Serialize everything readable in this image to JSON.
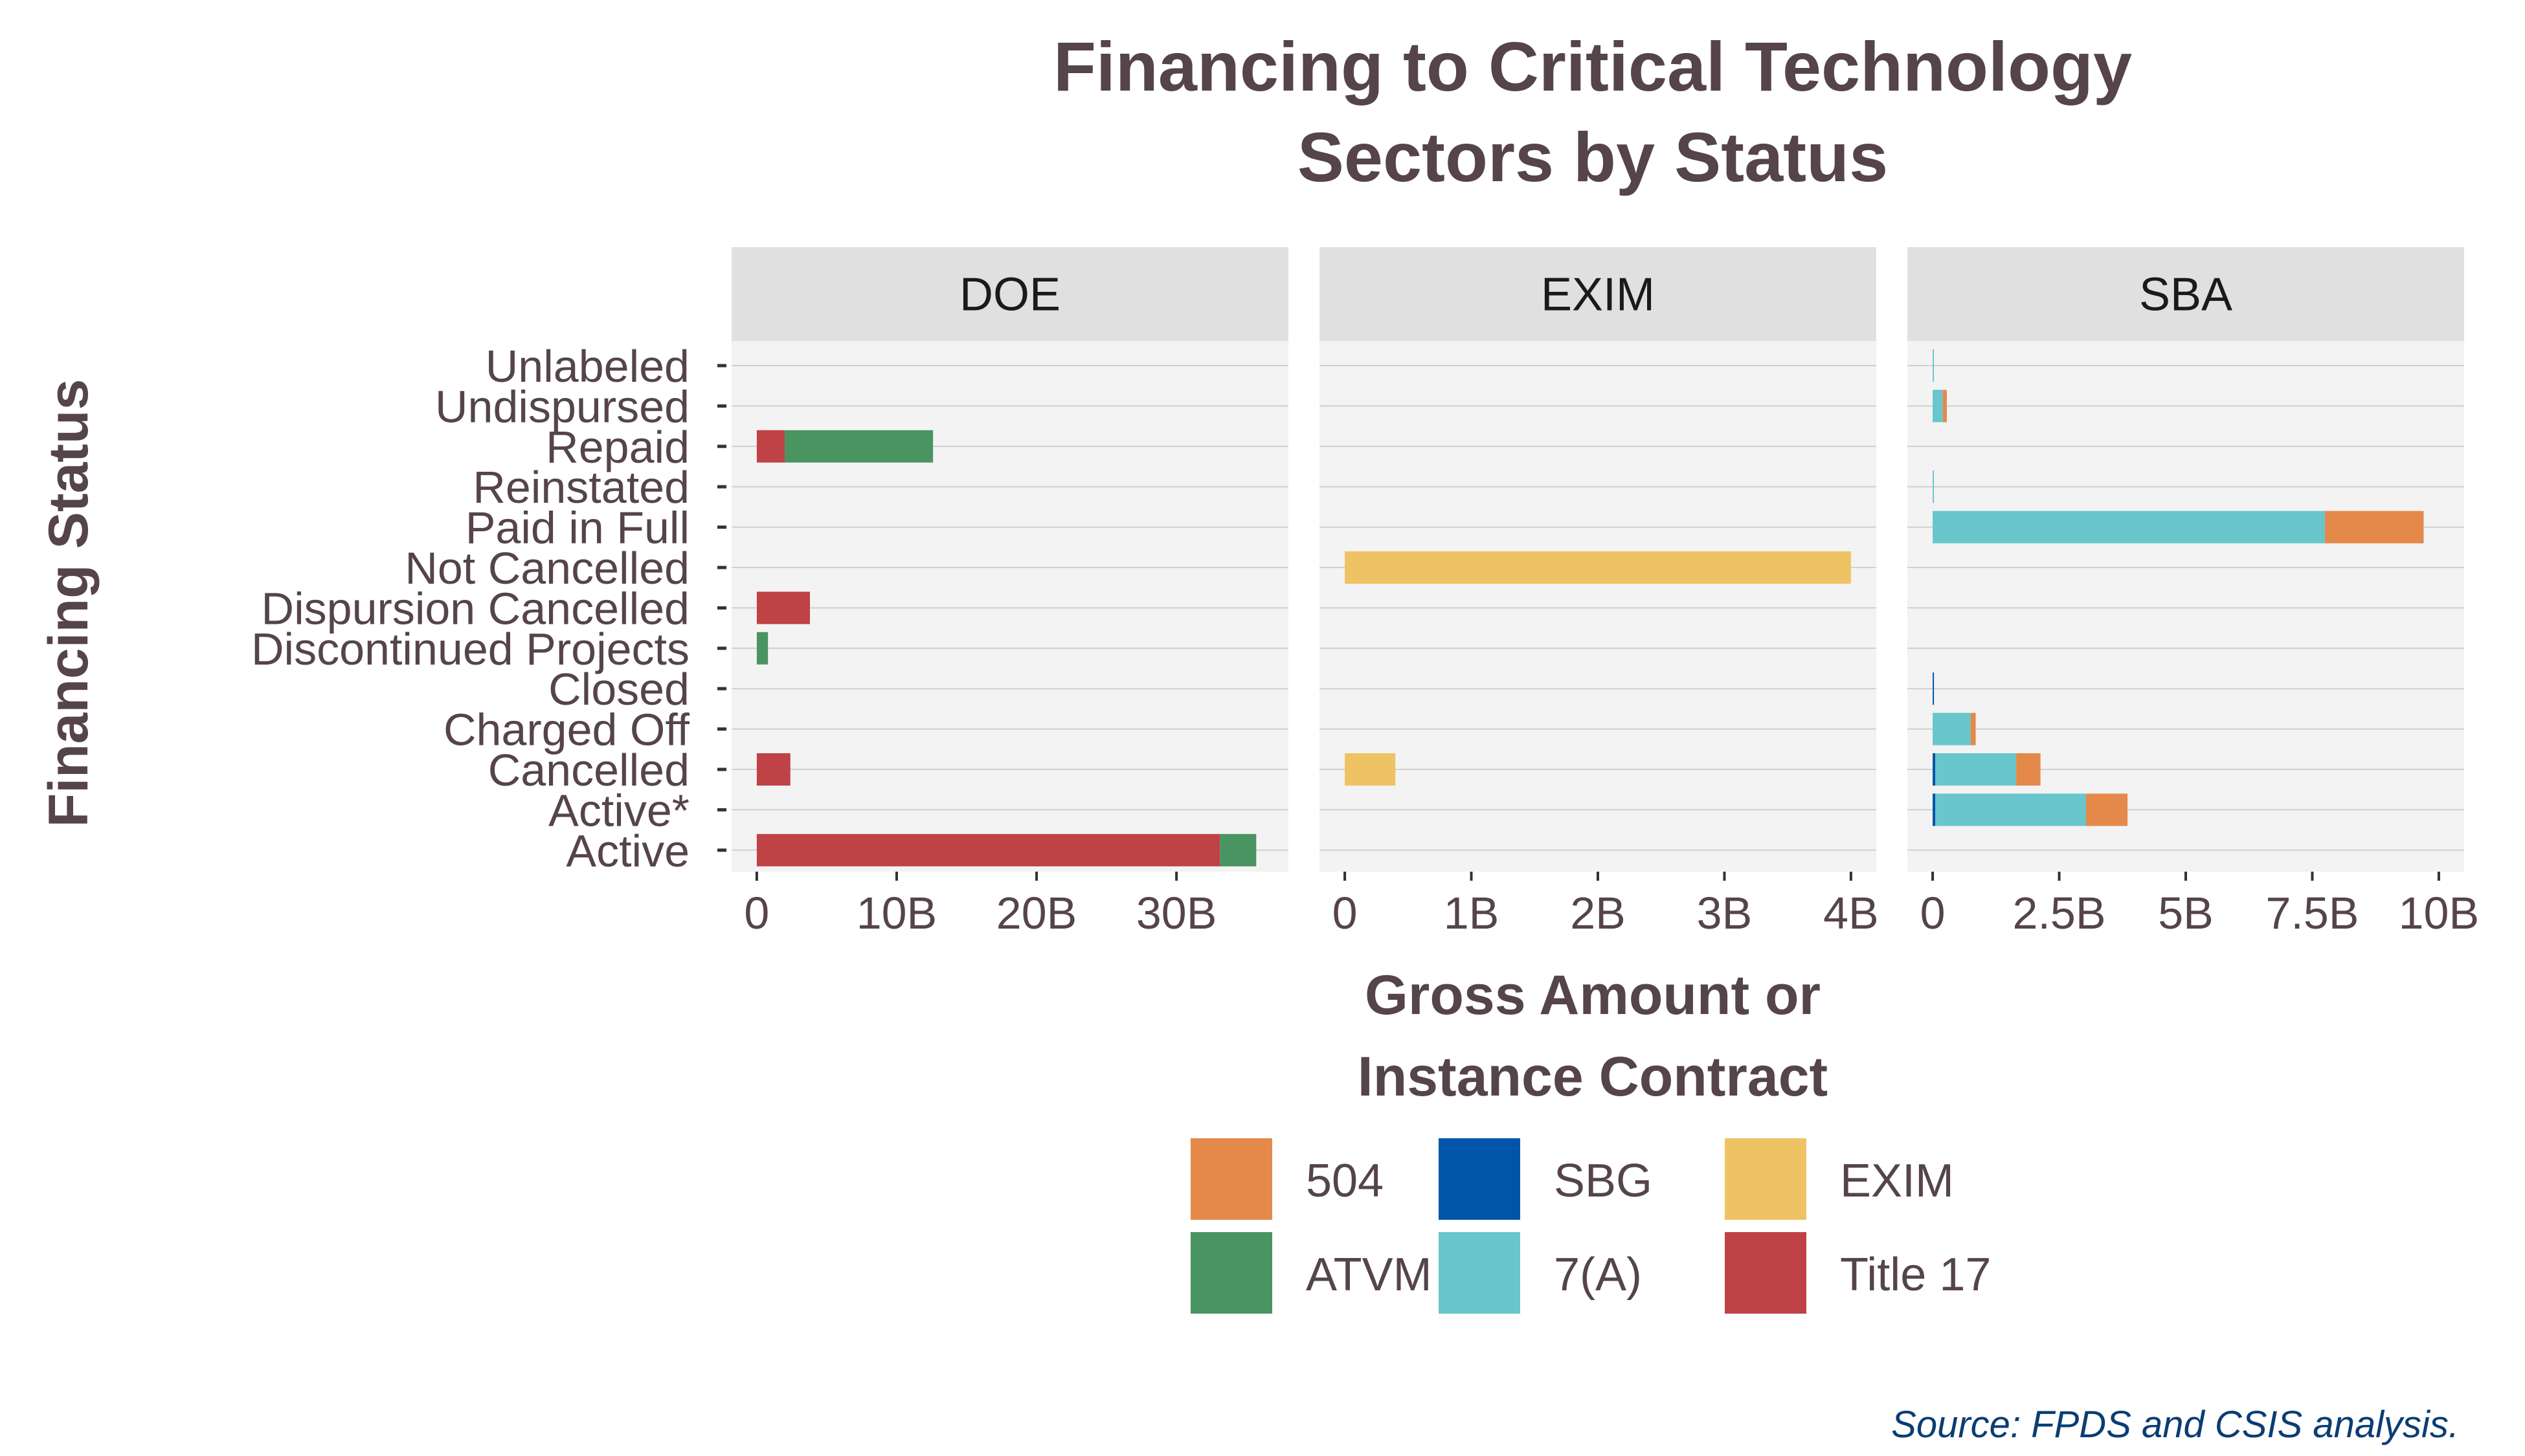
{
  "chart_data": {
    "type": "bar",
    "orientation": "horizontal",
    "stacked": true,
    "title": "Financing to Critical Technology Sectors by Status",
    "title_lines": [
      "Financing to Critical Technology",
      "Sectors by Status"
    ],
    "xlabel": "Gross Amount or Instance Contract",
    "xlabel_lines": [
      "Gross Amount or",
      "Instance Contract"
    ],
    "ylabel": "Financing Status",
    "caption": "Source: FPDS and CSIS analysis.",
    "categories": [
      "Unlabeled",
      "Undispursed",
      "Repaid",
      "Reinstated",
      "Paid in Full",
      "Not Cancelled",
      "Dispursion Cancelled",
      "Discontinued Projects",
      "Closed",
      "Charged Off",
      "Cancelled",
      "Active*",
      "Active"
    ],
    "legend": {
      "position": "bottom",
      "items": [
        {
          "name": "504",
          "color": "#E5894A"
        },
        {
          "name": "ATVM",
          "color": "#4A9461"
        },
        {
          "name": "SBG",
          "color": "#0055A8"
        },
        {
          "name": "7(A)",
          "color": "#68C6CC"
        },
        {
          "name": "EXIM",
          "color": "#EEC363"
        },
        {
          "name": "Title 17",
          "color": "#BF4246"
        }
      ]
    },
    "stack_order": [
      "SBG",
      "7(A)",
      "504",
      "Title 17",
      "ATVM",
      "EXIM"
    ],
    "facets": [
      {
        "name": "DOE",
        "xlim": [
          -1.8,
          38
        ],
        "ticks": [
          0,
          10,
          20,
          30
        ],
        "tick_labels": [
          "0",
          "10B",
          "20B",
          "30B"
        ],
        "bars": [
          {
            "category": "Repaid",
            "segments": [
              {
                "series": "Title 17",
                "value": 2.0
              },
              {
                "series": "ATVM",
                "value": 10.6
              }
            ]
          },
          {
            "category": "Dispursion Cancelled",
            "segments": [
              {
                "series": "Title 17",
                "value": 3.8
              }
            ]
          },
          {
            "category": "Discontinued Projects",
            "segments": [
              {
                "series": "ATVM",
                "value": 0.8
              }
            ]
          },
          {
            "category": "Cancelled",
            "segments": [
              {
                "series": "Title 17",
                "value": 2.4
              }
            ]
          },
          {
            "category": "Active",
            "segments": [
              {
                "series": "Title 17",
                "value": 33.1
              },
              {
                "series": "ATVM",
                "value": 2.6
              }
            ]
          }
        ]
      },
      {
        "name": "EXIM",
        "xlim": [
          -0.2,
          4.2
        ],
        "ticks": [
          0,
          1,
          2,
          3,
          4
        ],
        "tick_labels": [
          "0",
          "1B",
          "2B",
          "3B",
          "4B"
        ],
        "bars": [
          {
            "category": "Not Cancelled",
            "segments": [
              {
                "series": "EXIM",
                "value": 4.0
              }
            ]
          },
          {
            "category": "Cancelled",
            "segments": [
              {
                "series": "EXIM",
                "value": 0.4
              }
            ]
          }
        ]
      },
      {
        "name": "SBA",
        "xlim": [
          -0.5,
          10.5
        ],
        "ticks": [
          0,
          2.5,
          5,
          7.5,
          10
        ],
        "tick_labels": [
          "0",
          "2.5B",
          "5B",
          "7.5B",
          "10B"
        ],
        "bars": [
          {
            "category": "Unlabeled",
            "segments": [
              {
                "series": "7(A)",
                "value": 0.01
              }
            ]
          },
          {
            "category": "Undispursed",
            "segments": [
              {
                "series": "7(A)",
                "value": 0.2
              },
              {
                "series": "504",
                "value": 0.08
              }
            ]
          },
          {
            "category": "Reinstated",
            "segments": [
              {
                "series": "7(A)",
                "value": 0.01
              }
            ]
          },
          {
            "category": "Paid in Full",
            "segments": [
              {
                "series": "7(A)",
                "value": 7.75
              },
              {
                "series": "504",
                "value": 1.95
              }
            ]
          },
          {
            "category": "Closed",
            "segments": [
              {
                "series": "SBG",
                "value": 0.02
              }
            ]
          },
          {
            "category": "Charged Off",
            "segments": [
              {
                "series": "7(A)",
                "value": 0.75
              },
              {
                "series": "504",
                "value": 0.1
              }
            ]
          },
          {
            "category": "Cancelled",
            "segments": [
              {
                "series": "SBG",
                "value": 0.05
              },
              {
                "series": "7(A)",
                "value": 1.6
              },
              {
                "series": "504",
                "value": 0.48
              }
            ]
          },
          {
            "category": "Active*",
            "segments": [
              {
                "series": "SBG",
                "value": 0.05
              },
              {
                "series": "7(A)",
                "value": 2.98
              },
              {
                "series": "504",
                "value": 0.82
              }
            ]
          }
        ]
      }
    ]
  }
}
